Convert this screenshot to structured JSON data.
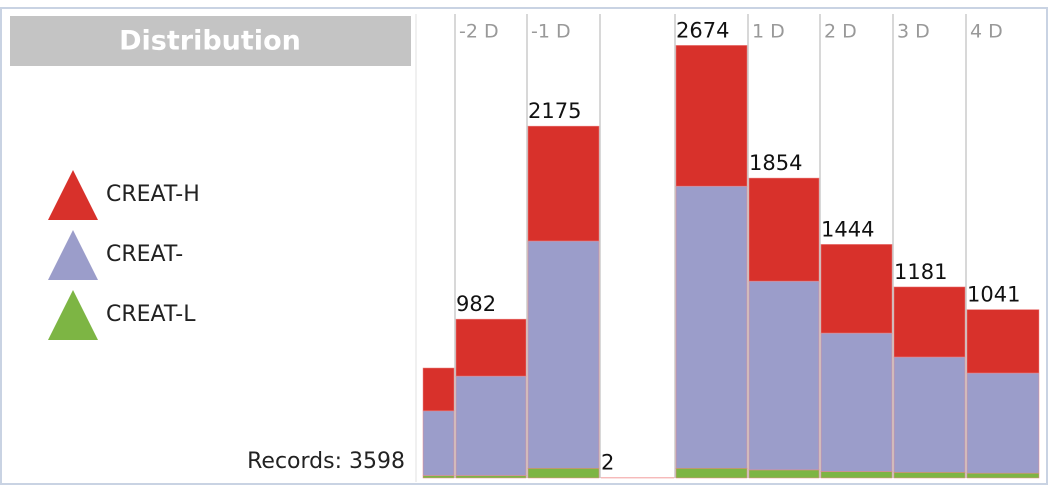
{
  "chart_data": {
    "type": "stacked_bar",
    "title": "Distribution",
    "annotation": "Records: 3598",
    "categories": [
      null,
      "-2 D",
      "-1 D",
      null,
      null,
      "1 D",
      "2 D",
      "3 D",
      "4 D"
    ],
    "series": [
      {
        "name": "CREAT-H",
        "color": "#d8312b",
        "values": [
          265,
          352,
          710,
          0,
          870,
          637,
          548,
          433,
          392
        ]
      },
      {
        "name": "CREAT-",
        "color": "#9b9dca",
        "values": [
          400,
          615,
          1405,
          0,
          1744,
          1167,
          856,
          713,
          619
        ]
      },
      {
        "name": "CREAT-L",
        "color": "#7db544",
        "values": [
          15,
          15,
          60,
          2,
          60,
          50,
          40,
          35,
          30
        ]
      }
    ],
    "totals": [
      null,
      982,
      2175,
      2,
      2674,
      1854,
      1444,
      1181,
      1041
    ],
    "ylim": [
      0,
      2800
    ]
  }
}
